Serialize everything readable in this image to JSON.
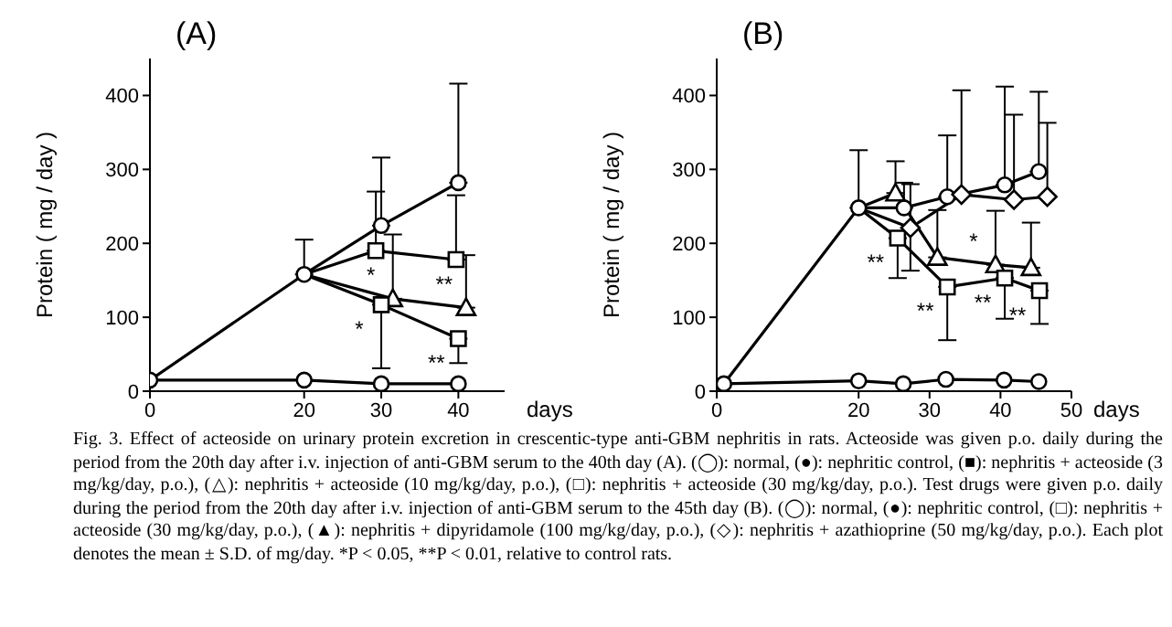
{
  "chart_data": [
    {
      "type": "line",
      "title": "(A)",
      "xlabel": "days",
      "ylabel": "Protein ( mg / day )",
      "xlim": [
        0,
        46
      ],
      "xticks": [
        0,
        20,
        30,
        40
      ],
      "ylim": [
        0,
        450
      ],
      "yticks": [
        0,
        100,
        200,
        300,
        400
      ],
      "series": [
        {
          "color": "#000000",
          "marker": "circle",
          "x": [
            0,
            20,
            30,
            40
          ],
          "values": [
            15,
            15,
            10,
            10
          ]
        },
        {
          "color": "#000000",
          "marker": "circle",
          "x": [
            0,
            20,
            30,
            40
          ],
          "values": [
            15,
            158,
            224,
            282
          ],
          "errors": [
            null,
            [
              158,
              205
            ],
            [
              224,
              316
            ],
            [
              282,
              416
            ]
          ]
        },
        {
          "color": "#000000",
          "marker": "square",
          "x": [
            20,
            29.3,
            39.7
          ],
          "values": [
            158,
            190,
            178
          ],
          "errors": [
            null,
            [
              190,
              270
            ],
            [
              178,
              265
            ]
          ]
        },
        {
          "color": "#000000",
          "marker": "triangle",
          "x": [
            20,
            31.5,
            41
          ],
          "values": [
            158,
            125,
            113
          ],
          "errors": [
            null,
            [
              125,
              212
            ],
            [
              113,
              184
            ]
          ]
        },
        {
          "color": "#000000",
          "marker": "square",
          "x": [
            20,
            30,
            40
          ],
          "values": [
            158,
            117,
            71
          ],
          "errors": [
            null,
            [
              31,
              117
            ],
            [
              38,
              71
            ]
          ]
        }
      ],
      "annotations": [
        {
          "text": "*",
          "x": 31.5,
          "y": 125
        },
        {
          "text": "*",
          "x": 30,
          "y": 117
        },
        {
          "text": "**",
          "x": 41,
          "y": 113
        },
        {
          "text": "**",
          "x": 40,
          "y": 71
        },
        "Fig. 3.  Effect of acteoside on urinary protein excretion in crescentic-type anti-GBM nephritis in rats. Acteoside was given p.o. daily during the period from the 20th day after i.v. injection of anti-GBM serum to the 40th day (A). (◯): normal, (●): nephritic control, (■): nephritis + acteoside (3 mg/kg/day, p.o.), (△): nephritis + acteoside (10 mg/kg/day, p.o.), (□): nephritis + acteoside (30 mg/kg/day, p.o.). Test drugs were given p.o. daily during the period from the 20th day after i.v. injection of anti-GBM serum to the 45th day (B). (◯): normal, (●): nephritic control, (□): nephritis + acteoside (30 mg/kg/day, p.o.), (▲): nephritis + dipyridamole (100 mg/kg/day, p.o.), (◇): nephritis + azathioprine (50 mg/kg/day, p.o.). Each plot denotes the mean ± S.D. of mg/day. *P < 0.05, **P < 0.01, relative to control rats."
      ]
    },
    {
      "type": "line",
      "title": "(B)",
      "xlabel": "days",
      "ylabel": "Protein ( mg / day )",
      "xlim": [
        0,
        50
      ],
      "xticks": [
        0,
        20,
        30,
        40,
        50
      ],
      "ylim": [
        0,
        450
      ],
      "yticks": [
        0,
        100,
        200,
        300,
        400
      ],
      "series": [
        {
          "color": "#000000",
          "marker": "circle",
          "x": [
            1,
            20,
            26.3,
            32.3,
            40.5,
            45.4
          ],
          "values": [
            10,
            14,
            10,
            16,
            15,
            13
          ]
        },
        {
          "color": "#000000",
          "marker": "circle",
          "x": [
            1,
            20,
            26.4,
            32.5,
            40.6,
            45.4
          ],
          "values": [
            10,
            248,
            248,
            263,
            279,
            297
          ],
          "errors": [
            null,
            [
              248,
              326
            ],
            [
              248,
              282
            ],
            [
              263,
              346
            ],
            [
              279,
              412
            ],
            [
              297,
              405
            ]
          ]
        },
        {
          "color": "#000000",
          "marker": "triangle",
          "x": [
            20,
            25.2,
            31.1,
            39.3,
            44.3
          ],
          "values": [
            248,
            268,
            181,
            171,
            167
          ],
          "errors": [
            null,
            [
              268,
              311
            ],
            [
              181,
              245
            ],
            [
              171,
              244
            ],
            [
              167,
              228
            ]
          ]
        },
        {
          "color": "#000000",
          "marker": "square",
          "x": [
            20,
            25.5,
            32.5,
            40.6,
            45.5
          ],
          "values": [
            248,
            207,
            141,
            153,
            136
          ],
          "errors": [
            null,
            [
              153,
              207
            ],
            [
              69,
              141
            ],
            [
              98,
              153
            ],
            [
              91,
              136
            ]
          ]
        },
        {
          "color": "#000000",
          "marker": "diamond",
          "x": [
            20,
            27.3,
            34.5,
            41.9,
            46.6
          ],
          "values": [
            248,
            221,
            266,
            259,
            263
          ],
          "errors": [
            null,
            [
              163,
              280
            ],
            [
              266,
              407
            ],
            [
              259,
              374
            ],
            [
              263,
              363
            ]
          ]
        }
      ],
      "annotations": [
        {
          "text": "**",
          "x": 25.5,
          "y": 207
        },
        {
          "text": "**",
          "x": 32.5,
          "y": 141
        },
        {
          "text": "*",
          "x": 39.3,
          "y": 171
        },
        {
          "text": "**",
          "x": 40.6,
          "y": 153
        },
        {
          "text": "**",
          "x": 45.5,
          "y": 136
        }
      ]
    }
  ]
}
